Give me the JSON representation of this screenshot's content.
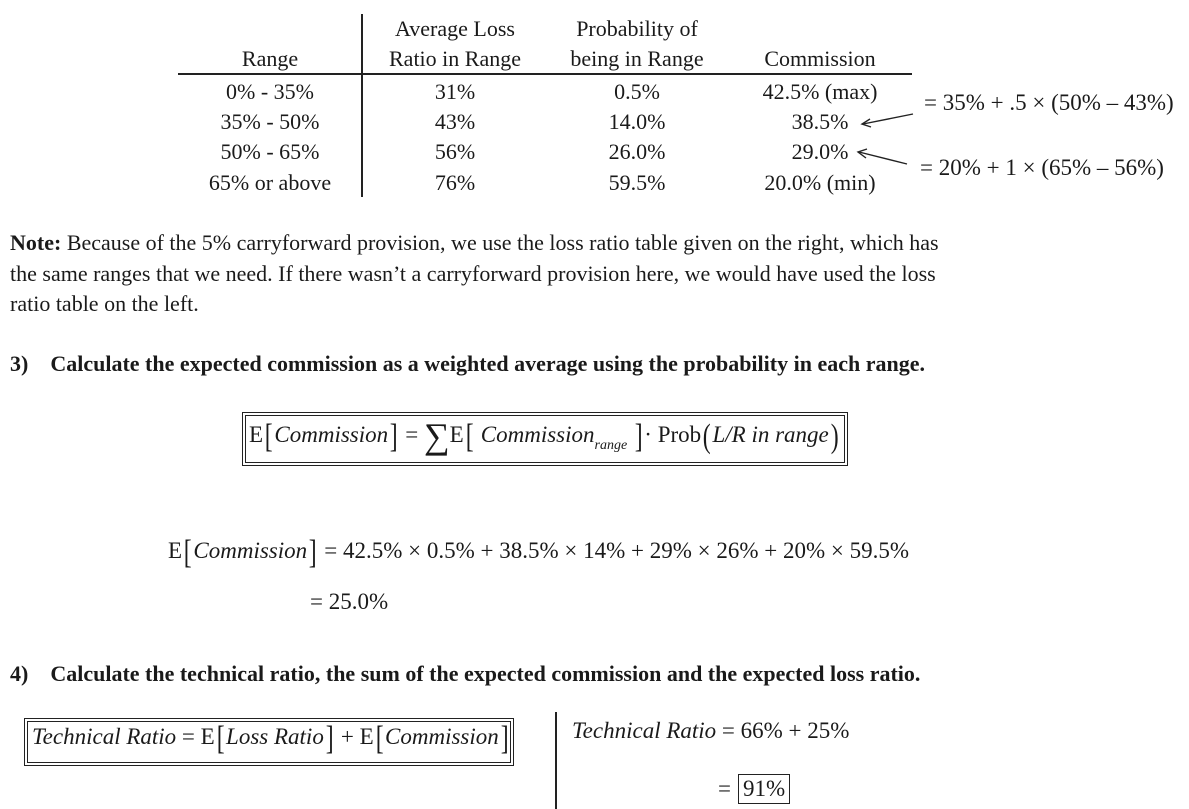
{
  "table": {
    "headers": {
      "range": "Range",
      "avg_loss_1": "Average Loss",
      "avg_loss_2": "Ratio in Range",
      "prob_1": "Probability of",
      "prob_2": "being in Range",
      "commission": "Commission"
    },
    "rows": [
      {
        "range": "0% - 35%",
        "avg_loss": "31%",
        "prob": "0.5%",
        "commission": "42.5% (max)"
      },
      {
        "range": "35% - 50%",
        "avg_loss": "43%",
        "prob": "14.0%",
        "commission": "38.5%"
      },
      {
        "range": "50% - 65%",
        "avg_loss": "56%",
        "prob": "26.0%",
        "commission": "29.0%"
      },
      {
        "range": "65% or above",
        "avg_loss": "76%",
        "prob": "59.5%",
        "commission": "20.0% (min)"
      }
    ],
    "annotations": {
      "row2": "= 35% + .5 × (50% – 43%)",
      "row3": "= 20% + 1 × (65% – 56%)"
    }
  },
  "note": {
    "label": "Note:",
    "line1": "Because of the 5% carryforward provision, we use the loss ratio table given on the right, which has",
    "line2": "the same ranges that we need. If there wasn’t a carryforward provision here, we would have used the loss",
    "line3": "ratio table on the left."
  },
  "step3": {
    "heading": "3)    Calculate the expected commission as a weighted average using the probability in each range.",
    "formula": {
      "E": "E",
      "commission": "Commission",
      "eq": "=",
      "sigma": "∑",
      "commission_range": "Commission",
      "sub_range": "range",
      "dot": "·",
      "prob": "Prob",
      "lr": "L/R in range"
    },
    "calc_lhs_E": "E",
    "calc_lhs_var": "Commission",
    "calc_rhs": "= 42.5% × 0.5% + 38.5% × 14% + 29% × 26% + 20% × 59.5%",
    "result": "= 25.0%"
  },
  "step4": {
    "heading": "4)    Calculate the technical ratio, the sum of the expected commission and the expected loss ratio.",
    "formula": {
      "tr": "Technical Ratio",
      "eq": "=",
      "E1": "E",
      "loss_ratio": "Loss Ratio",
      "plus": "+",
      "E2": "E",
      "commission": "Commission"
    },
    "calc_tr": "Technical Ratio",
    "calc_rhs": "= 66% + 25%",
    "result_eq": "=",
    "result": "91%"
  }
}
